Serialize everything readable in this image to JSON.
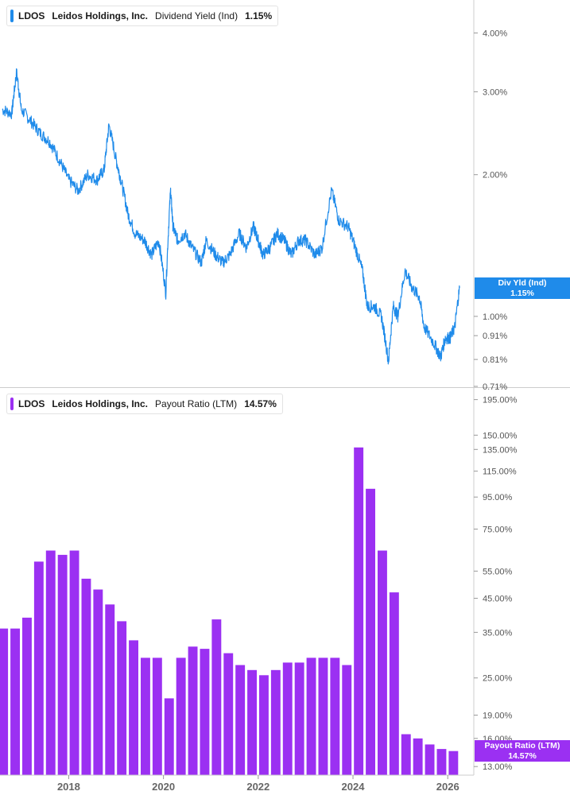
{
  "colors": {
    "yield_line": "#1f8bea",
    "bars": "#9b30f2",
    "axis": "#cccccc",
    "tick_text": "#555555",
    "year_text": "#666666"
  },
  "legend_top": {
    "symbol": "LDOS",
    "company": "Leidos Holdings, Inc.",
    "metric": "Dividend Yield (Ind)",
    "value": "1.15%"
  },
  "legend_bottom": {
    "symbol": "LDOS",
    "company": "Leidos Holdings, Inc.",
    "metric": "Payout Ratio (LTM)",
    "value": "14.57%"
  },
  "tag_yield": {
    "label": "Div Yld (Ind)",
    "value": "1.15%"
  },
  "tag_payout": {
    "label": "Payout Ratio (LTM)",
    "value": "14.57%"
  },
  "chart_data": [
    {
      "type": "line",
      "title": "Dividend Yield (Ind)",
      "series": [
        {
          "name": "Dividend Yield (Ind)",
          "x": [
            2016.6,
            2016.8,
            2016.9,
            2017.0,
            2017.2,
            2017.4,
            2017.6,
            2017.8,
            2018.0,
            2018.2,
            2018.4,
            2018.6,
            2018.75,
            2018.85,
            2019.0,
            2019.1,
            2019.25,
            2019.4,
            2019.6,
            2019.75,
            2019.9,
            2020.05,
            2020.15,
            2020.2,
            2020.3,
            2020.45,
            2020.6,
            2020.8,
            2020.9,
            2021.1,
            2021.25,
            2021.4,
            2021.6,
            2021.75,
            2021.9,
            2022.0,
            2022.1,
            2022.25,
            2022.4,
            2022.55,
            2022.7,
            2022.85,
            2023.0,
            2023.2,
            2023.35,
            2023.55,
            2023.7,
            2023.9,
            2024.05,
            2024.2,
            2024.3,
            2024.45,
            2024.6,
            2024.75,
            2024.85,
            2024.95,
            2025.1,
            2025.25,
            2025.4,
            2025.5,
            2025.7,
            2025.85,
            2025.95,
            2026.05,
            2026.15,
            2026.25
          ],
          "values": [
            2.75,
            2.7,
            3.3,
            2.75,
            2.6,
            2.45,
            2.35,
            2.15,
            1.95,
            1.85,
            2.0,
            1.95,
            2.05,
            2.55,
            2.15,
            1.95,
            1.65,
            1.5,
            1.45,
            1.35,
            1.45,
            1.12,
            1.85,
            1.55,
            1.45,
            1.5,
            1.4,
            1.3,
            1.45,
            1.35,
            1.3,
            1.35,
            1.5,
            1.4,
            1.55,
            1.45,
            1.35,
            1.4,
            1.5,
            1.45,
            1.35,
            1.45,
            1.45,
            1.35,
            1.4,
            1.85,
            1.6,
            1.55,
            1.4,
            1.25,
            1.05,
            1.05,
            1.0,
            0.8,
            1.05,
            1.0,
            1.25,
            1.15,
            1.1,
            0.95,
            0.88,
            0.82,
            0.9,
            0.9,
            0.95,
            1.15
          ]
        }
      ],
      "y_ticks": [
        {
          "value": 4.0,
          "label": "4.00%"
        },
        {
          "value": 3.0,
          "label": "3.00%"
        },
        {
          "value": 2.0,
          "label": "2.00%"
        },
        {
          "value": 1.0,
          "label": "1.00%"
        },
        {
          "value": 0.91,
          "label": "0.91%"
        },
        {
          "value": 0.81,
          "label": "0.81%"
        },
        {
          "value": 0.71,
          "label": "0.71%"
        }
      ],
      "y_scale": "log",
      "ylim": [
        0.71,
        4.7
      ],
      "xlim": [
        2016.55,
        2026.55
      ],
      "grid": false
    },
    {
      "type": "bar",
      "title": "Payout Ratio (LTM)",
      "series": [
        {
          "name": "Payout Ratio (LTM)",
          "x": [
            2016.62,
            2016.87,
            2017.12,
            2017.37,
            2017.62,
            2017.87,
            2018.12,
            2018.37,
            2018.62,
            2018.87,
            2019.12,
            2019.37,
            2019.62,
            2019.87,
            2020.12,
            2020.37,
            2020.62,
            2020.87,
            2021.12,
            2021.37,
            2021.62,
            2021.87,
            2022.12,
            2022.37,
            2022.62,
            2022.87,
            2023.12,
            2023.37,
            2023.62,
            2023.87,
            2024.12,
            2024.37,
            2024.62,
            2024.87,
            2025.12,
            2025.37,
            2025.62,
            2025.87,
            2026.12
          ],
          "values": [
            36,
            36,
            39,
            59,
            64,
            62,
            64,
            52,
            48,
            43,
            38,
            33,
            29,
            29,
            21.5,
            29,
            31.5,
            31,
            38.5,
            30,
            27.5,
            26.5,
            25.5,
            26.5,
            28,
            28,
            29,
            29,
            29,
            27.5,
            137,
            101,
            64,
            47,
            16.5,
            16,
            15.3,
            14.8,
            14.57
          ]
        }
      ],
      "y_ticks": [
        {
          "value": 195,
          "label": "195.00%"
        },
        {
          "value": 150,
          "label": "150.00%"
        },
        {
          "value": 135,
          "label": "135.00%"
        },
        {
          "value": 115,
          "label": "115.00%"
        },
        {
          "value": 95,
          "label": "95.00%"
        },
        {
          "value": 75,
          "label": "75.00%"
        },
        {
          "value": 55,
          "label": "55.00%"
        },
        {
          "value": 45,
          "label": "45.00%"
        },
        {
          "value": 35,
          "label": "35.00%"
        },
        {
          "value": 25,
          "label": "25.00%"
        },
        {
          "value": 19,
          "label": "19.00%"
        },
        {
          "value": 16,
          "label": "16.00%"
        },
        {
          "value": 13,
          "label": "13.00%"
        }
      ],
      "y_scale": "log",
      "ylim": [
        12.2,
        210
      ],
      "x_ticks": [
        {
          "value": 2018,
          "label": "2018"
        },
        {
          "value": 2020,
          "label": "2020"
        },
        {
          "value": 2022,
          "label": "2022"
        },
        {
          "value": 2024,
          "label": "2024"
        },
        {
          "value": 2026,
          "label": "2026"
        }
      ],
      "xlim": [
        2016.55,
        2026.55
      ],
      "grid": false
    }
  ]
}
